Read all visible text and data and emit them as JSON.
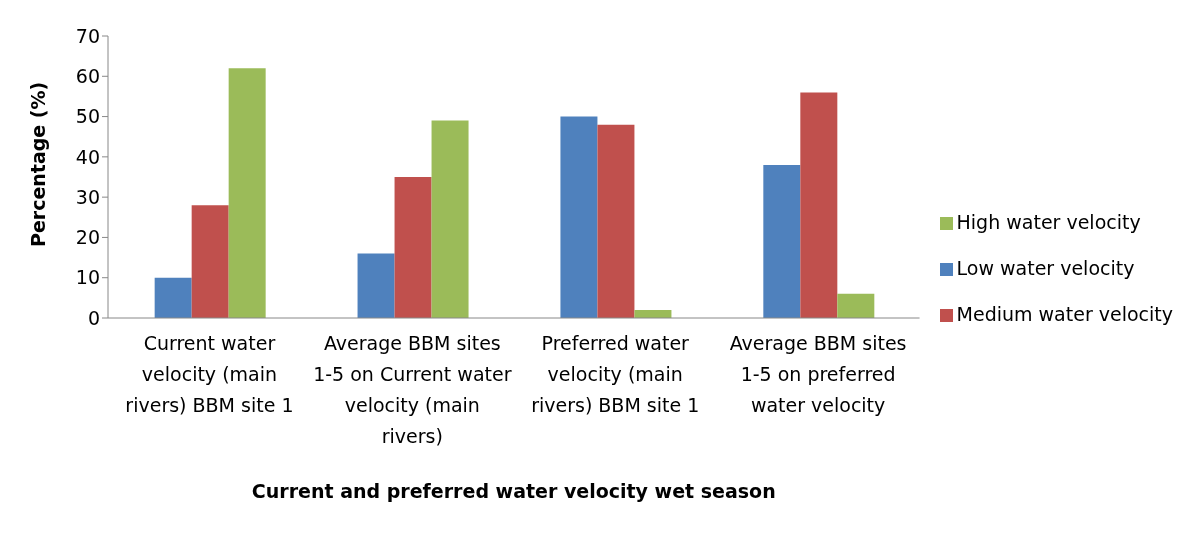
{
  "chart_data": {
    "type": "bar",
    "xlabel": "Current and preferred water velocity wet season",
    "ylabel": "Percentage (%)",
    "categories": [
      "Current water velocity (main rivers) BBM site 1",
      "Average BBM sites 1-5 on Current water velocity (main rivers)",
      "Preferred water velocity (main rivers) BBM site 1",
      "Average BBM sites 1-5 on preferred water velocity"
    ],
    "series": [
      {
        "name": "Low water velocity",
        "color": "#4f81bd",
        "values": [
          10,
          16,
          50,
          38
        ]
      },
      {
        "name": "Medium water velocity",
        "color": "#c0504d",
        "values": [
          28,
          35,
          48,
          56
        ]
      },
      {
        "name": "High water velocity",
        "color": "#9bbb59",
        "values": [
          62,
          49,
          2,
          6
        ]
      }
    ],
    "ylim": [
      0,
      70
    ],
    "yticks": [
      0,
      10,
      20,
      30,
      40,
      50,
      60,
      70
    ],
    "legend": "right"
  }
}
